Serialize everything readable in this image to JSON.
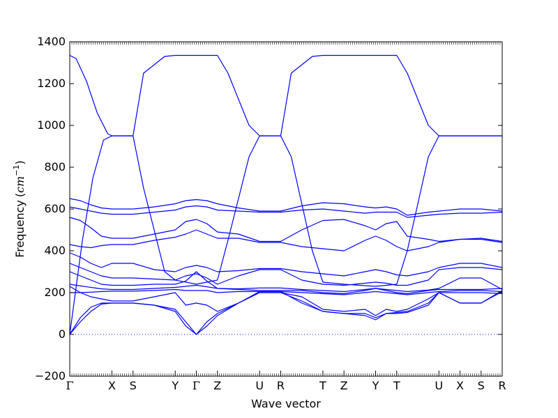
{
  "chart_data": {
    "type": "line",
    "title": "",
    "xlabel": "Wave vector",
    "ylabel": "Frequency",
    "ylabel_unit_prefix": "(",
    "ylabel_unit": "cm",
    "ylabel_unit_exp": "−1",
    "ylabel_unit_suffix": ")",
    "ylim": [
      -200,
      1400
    ],
    "yticks": [
      -200,
      0,
      200,
      400,
      600,
      800,
      1000,
      1200,
      1400
    ],
    "xlim": [
      0,
      20.5
    ],
    "grid": false,
    "line_color": "#0000ff",
    "zero_line_color": "#0000ff",
    "high_points": [
      {
        "label": "Γ",
        "x": 0
      },
      {
        "label": "X",
        "x": 2
      },
      {
        "label": "S",
        "x": 3
      },
      {
        "label": "Y",
        "x": 5
      },
      {
        "label": "Γ",
        "x": 6
      },
      {
        "label": "Z",
        "x": 7
      },
      {
        "label": "U",
        "x": 9
      },
      {
        "label": "R",
        "x": 10
      },
      {
        "label": "T",
        "x": 12
      },
      {
        "label": "Z",
        "x": 13
      },
      {
        "label": "Y",
        "x": 14.5
      },
      {
        "label": "T",
        "x": 15.5
      },
      {
        "label": "U",
        "x": 17.5
      },
      {
        "label": "X",
        "x": 18.5
      },
      {
        "label": "S",
        "x": 19.5
      },
      {
        "label": "R",
        "x": 20.5
      }
    ],
    "series": [
      {
        "x": [
          0,
          0.3,
          0.8,
          1.3,
          1.8,
          2,
          3,
          3.5,
          4.5,
          5,
          6,
          7,
          7.5,
          8.5,
          9,
          10,
          10.5,
          11.5,
          12,
          13,
          14.5,
          15.5,
          16,
          17,
          17.5,
          18.5,
          19.5,
          20.5
        ],
        "values": [
          1335,
          1320,
          1210,
          1060,
          960,
          950,
          950,
          1250,
          1330,
          1335,
          1335,
          1335,
          1250,
          1000,
          950,
          950,
          1250,
          1330,
          1335,
          1335,
          1335,
          1335,
          1250,
          1000,
          950,
          950,
          950,
          950
        ]
      },
      {
        "x": [
          0,
          0.2,
          0.6,
          1.1,
          1.6,
          2,
          3,
          3.5,
          4.5,
          5,
          6,
          7,
          7.5,
          8.5,
          9,
          10,
          10.5,
          11.5,
          12,
          13,
          14.5,
          15.5,
          16,
          17,
          17.5,
          18.5,
          19.5,
          20.5
        ],
        "values": [
          0,
          150,
          450,
          750,
          930,
          950,
          950,
          700,
          300,
          260,
          240,
          260,
          450,
          850,
          950,
          950,
          850,
          400,
          250,
          240,
          230,
          240,
          400,
          850,
          950,
          950,
          950,
          950
        ]
      },
      {
        "x": [
          0,
          0.5,
          1,
          1.5,
          2,
          3,
          4,
          5,
          5.5,
          6,
          6.5,
          7,
          8,
          9,
          10,
          11,
          12,
          13,
          14,
          14.5,
          15,
          15.5,
          16,
          17,
          17.5,
          18.5,
          19.5,
          20.5
        ],
        "values": [
          650,
          640,
          620,
          605,
          600,
          600,
          610,
          625,
          640,
          645,
          640,
          625,
          605,
          590,
          590,
          615,
          630,
          625,
          610,
          605,
          610,
          600,
          570,
          585,
          590,
          600,
          600,
          590
        ]
      },
      {
        "x": [
          0,
          0.5,
          1,
          1.5,
          2,
          3,
          4,
          5,
          5.5,
          6,
          6.5,
          7,
          8,
          9,
          10,
          11,
          12,
          13,
          14,
          14.5,
          15,
          15.5,
          16,
          17,
          17.5,
          18.5,
          19.5,
          20.5
        ],
        "values": [
          610,
          600,
          590,
          580,
          575,
          575,
          585,
          595,
          610,
          615,
          610,
          595,
          590,
          585,
          585,
          595,
          600,
          590,
          580,
          585,
          585,
          585,
          560,
          570,
          575,
          580,
          580,
          585
        ]
      },
      {
        "x": [
          0,
          0.5,
          1,
          1.5,
          2,
          3,
          4,
          5,
          5.5,
          6,
          6.5,
          7,
          8,
          9,
          10,
          11,
          12,
          13,
          14,
          14.5,
          15,
          15.5,
          16,
          17,
          17.5,
          18.5,
          19.5,
          20.5
        ],
        "values": [
          560,
          545,
          510,
          470,
          460,
          460,
          480,
          500,
          540,
          550,
          530,
          490,
          480,
          445,
          445,
          500,
          545,
          550,
          520,
          500,
          530,
          540,
          470,
          455,
          445,
          455,
          460,
          445
        ]
      },
      {
        "x": [
          0,
          0.5,
          1,
          1.5,
          2,
          3,
          4,
          5,
          5.5,
          6,
          6.5,
          7,
          8,
          9,
          10,
          11,
          12,
          13,
          14,
          14.5,
          15,
          15.5,
          16,
          17,
          17.5,
          18.5,
          19.5,
          20.5
        ],
        "values": [
          430,
          420,
          415,
          425,
          430,
          430,
          450,
          465,
          480,
          500,
          480,
          460,
          460,
          440,
          440,
          420,
          410,
          400,
          450,
          470,
          450,
          420,
          400,
          420,
          440,
          455,
          455,
          440
        ]
      },
      {
        "x": [
          0,
          0.5,
          1,
          1.5,
          2,
          3,
          4,
          5,
          5.5,
          6,
          6.5,
          7,
          8,
          9,
          10,
          11,
          12,
          13,
          14,
          14.5,
          15,
          15.5,
          16,
          17,
          17.5,
          18.5,
          19.5,
          20.5
        ],
        "values": [
          390,
          370,
          340,
          320,
          340,
          340,
          310,
          300,
          320,
          330,
          320,
          300,
          305,
          315,
          315,
          300,
          290,
          280,
          300,
          310,
          300,
          285,
          280,
          300,
          320,
          340,
          340,
          320
        ]
      },
      {
        "x": [
          0,
          0.5,
          1,
          1.5,
          2,
          3,
          4,
          5,
          5.5,
          6,
          6.5,
          7,
          8,
          9,
          10,
          11,
          12,
          13,
          14,
          14.5,
          15,
          15.5,
          16,
          17,
          17.5,
          18.5,
          19.5,
          20.5
        ],
        "values": [
          340,
          320,
          300,
          280,
          270,
          270,
          265,
          260,
          280,
          290,
          270,
          240,
          280,
          310,
          310,
          260,
          240,
          235,
          245,
          250,
          245,
          235,
          235,
          260,
          310,
          320,
          320,
          310
        ]
      },
      {
        "x": [
          0,
          0.5,
          1,
          1.5,
          2,
          3,
          4,
          5,
          5.5,
          6,
          6.5,
          7,
          8,
          9,
          10,
          11,
          12,
          13,
          14,
          14.5,
          15,
          15.5,
          16,
          17,
          17.5,
          18.5,
          19.5,
          20.5
        ],
        "values": [
          300,
          280,
          260,
          240,
          235,
          235,
          240,
          240,
          255,
          300,
          255,
          220,
          215,
          210,
          210,
          210,
          200,
          195,
          210,
          220,
          210,
          200,
          195,
          210,
          215,
          215,
          215,
          220
        ]
      },
      {
        "x": [
          0,
          0.5,
          1,
          1.5,
          2,
          3,
          4,
          5,
          5.5,
          6,
          6.5,
          7,
          8,
          9,
          10,
          11,
          12,
          13,
          14,
          14.5,
          15,
          15.5,
          16,
          17,
          17.5,
          18.5,
          19.5,
          20.5
        ],
        "values": [
          240,
          232,
          225,
          218,
          215,
          215,
          220,
          225,
          230,
          235,
          228,
          220,
          218,
          222,
          222,
          215,
          210,
          205,
          215,
          220,
          215,
          210,
          205,
          212,
          220,
          270,
          270,
          215
        ]
      },
      {
        "x": [
          0,
          0.5,
          1,
          1.5,
          2,
          3,
          4,
          5,
          5.5,
          6,
          6.5,
          7,
          8,
          9,
          10,
          11,
          12,
          13,
          14,
          14.5,
          15,
          15.5,
          16,
          17,
          17.5,
          18.5,
          19.5,
          20.5
        ],
        "values": [
          200,
          200,
          202,
          205,
          207,
          207,
          210,
          215,
          210,
          210,
          210,
          200,
          205,
          205,
          205,
          200,
          195,
          190,
          200,
          205,
          200,
          195,
          190,
          200,
          205,
          210,
          210,
          205
        ]
      },
      {
        "x": [
          0,
          0.5,
          1,
          1.5,
          2,
          3,
          4,
          5,
          5.5,
          6,
          6.5,
          7,
          8,
          9,
          10,
          11,
          12,
          13,
          14,
          14.5,
          15,
          15.5,
          16,
          17,
          17.5,
          18.5,
          19.5,
          20.5
        ],
        "values": [
          230,
          200,
          180,
          170,
          160,
          160,
          180,
          200,
          140,
          150,
          140,
          110,
          150,
          200,
          200,
          180,
          120,
          110,
          120,
          90,
          120,
          110,
          120,
          170,
          200,
          200,
          200,
          195
        ]
      },
      {
        "x": [
          0,
          0.5,
          1,
          1.5,
          2,
          3,
          4,
          5,
          5.5,
          6,
          6.5,
          7,
          8,
          9,
          10,
          11,
          12,
          13,
          14,
          14.5,
          15,
          15.5,
          16,
          17,
          17.5,
          18.5,
          19.5,
          20.5
        ],
        "values": [
          0,
          80,
          130,
          150,
          150,
          150,
          140,
          120,
          60,
          0,
          60,
          100,
          150,
          200,
          200,
          160,
          110,
          100,
          100,
          80,
          100,
          105,
          110,
          150,
          200,
          150,
          150,
          210
        ]
      },
      {
        "x": [
          0,
          0.5,
          1,
          1.5,
          2,
          3,
          4,
          5,
          5.5,
          6,
          6.5,
          7,
          8,
          9,
          10,
          11,
          12,
          13,
          14,
          14.5,
          15,
          15.5,
          16,
          17,
          17.5,
          18.5,
          19.5,
          20.5
        ],
        "values": [
          0,
          60,
          110,
          145,
          150,
          150,
          140,
          110,
          40,
          0,
          40,
          90,
          150,
          205,
          205,
          150,
          110,
          100,
          90,
          70,
          100,
          100,
          105,
          140,
          200,
          150,
          150,
          205
        ]
      }
    ]
  }
}
